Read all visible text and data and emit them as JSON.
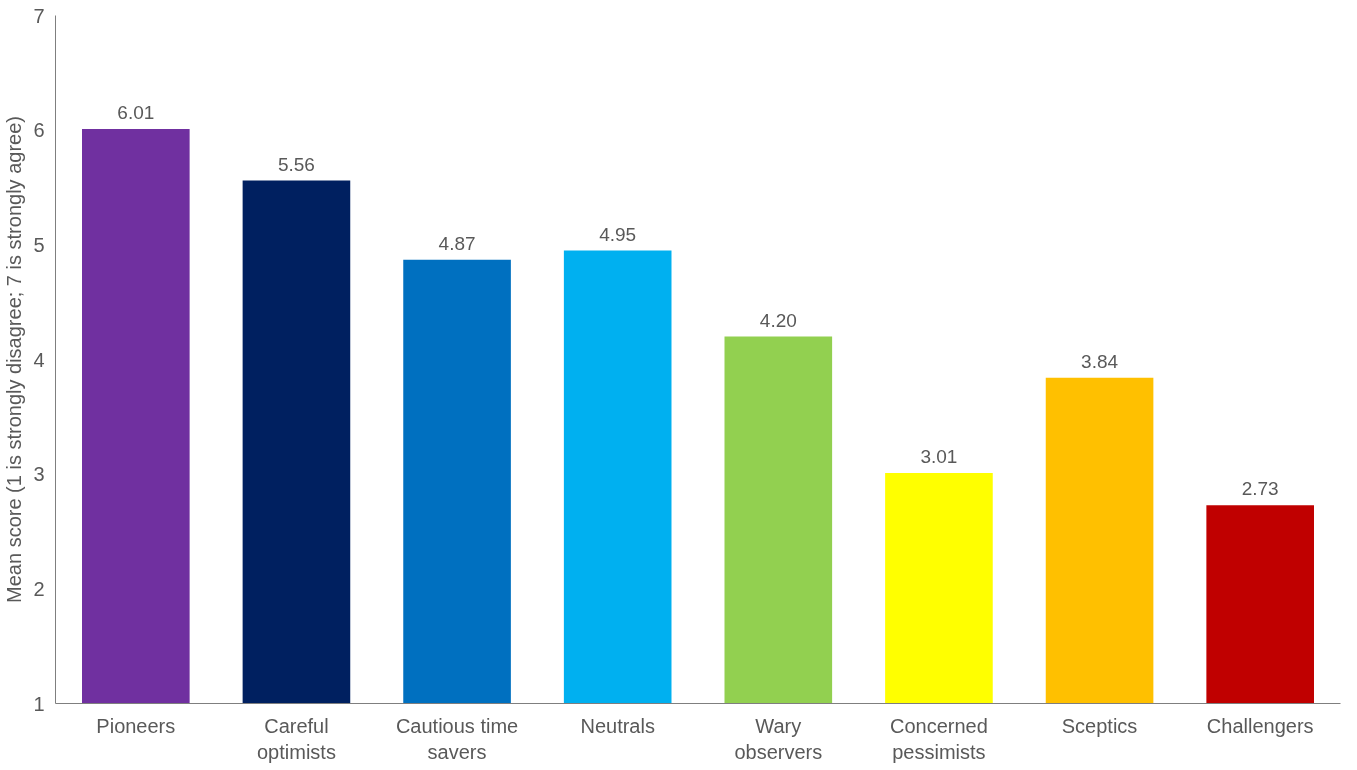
{
  "chart_data": {
    "type": "bar",
    "ylabel": "Mean score (1 is strongly disagree; 7 is strongly agree)",
    "categories": [
      "Pioneers",
      "Careful optimists",
      "Cautious time savers",
      "Neutrals",
      "Wary observers",
      "Concerned pessimists",
      "Sceptics",
      "Challengers"
    ],
    "values": [
      6.01,
      5.56,
      4.87,
      4.95,
      4.2,
      3.01,
      3.84,
      2.73
    ],
    "value_labels": [
      "6.01",
      "5.56",
      "4.87",
      "4.95",
      "4.20",
      "3.01",
      "3.84",
      "2.73"
    ],
    "colors": [
      "#7030a0",
      "#002060",
      "#0070c0",
      "#00b0f0",
      "#92d050",
      "#ffff00",
      "#ffc000",
      "#c00000"
    ],
    "ylim": [
      1,
      7
    ],
    "yticks": [
      1,
      2,
      3,
      4,
      5,
      6,
      7
    ],
    "grid": false
  }
}
